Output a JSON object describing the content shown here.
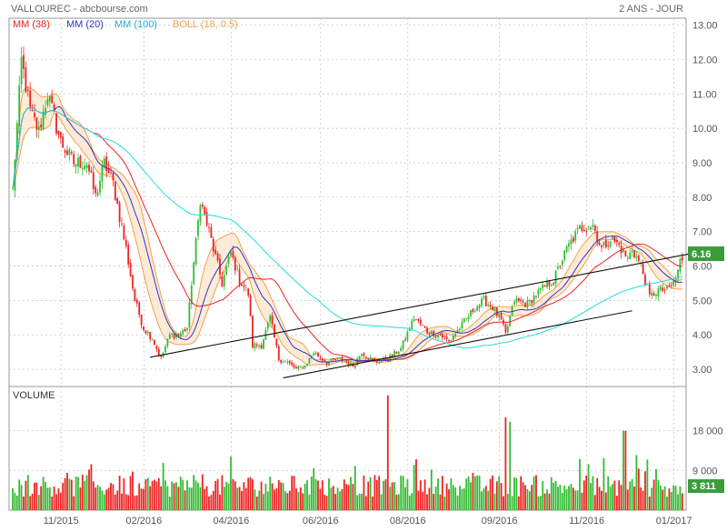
{
  "header": {
    "title": "VALLOUREC - abcbourse.com",
    "period": "2 ANS - JOUR"
  },
  "legend": [
    {
      "label": "MM (38)",
      "color": "#ee2222"
    },
    {
      "label": "MM (20)",
      "color": "#3333cc"
    },
    {
      "label": "MM (100)",
      "color": "#22dddd"
    },
    {
      "label": "BOLL (18, 0.5)",
      "color": "#f0a050"
    }
  ],
  "last_price": {
    "label": "6.16",
    "value": 6.16
  },
  "volume": {
    "title": "VOLUME",
    "last_label": "3 811",
    "last_value": 3811
  },
  "colors": {
    "up": "#33bb33",
    "down": "#ee2222",
    "grid": "#c0c0c0",
    "frame": "#999999",
    "tag": "#3a9d3a"
  },
  "chart_data": [
    {
      "type": "candlestick",
      "title": "VALLOUREC",
      "ylim": [
        2.5,
        13.2
      ],
      "y_ticks": [
        "3.00",
        "4.00",
        "5.00",
        "6.00",
        "7.00",
        "8.00",
        "9.00",
        "10.00",
        "11.00",
        "12.00",
        "13.00"
      ],
      "x_ticks": [
        "11/2015",
        "02/2016",
        "04/2016",
        "06/2016",
        "08/2016",
        "09/2016",
        "11/2016",
        "01/2017"
      ],
      "close_anchors": [
        [
          0,
          8.2
        ],
        [
          4,
          12.0
        ],
        [
          8,
          10.5
        ],
        [
          12,
          9.9
        ],
        [
          16,
          11.0
        ],
        [
          22,
          9.6
        ],
        [
          28,
          9.0
        ],
        [
          34,
          9.0
        ],
        [
          38,
          8.0
        ],
        [
          42,
          9.0
        ],
        [
          46,
          8.4
        ],
        [
          52,
          6.5
        ],
        [
          56,
          5.0
        ],
        [
          60,
          4.2
        ],
        [
          64,
          3.9
        ],
        [
          68,
          3.3
        ],
        [
          72,
          4.0
        ],
        [
          76,
          4.0
        ],
        [
          80,
          4.2
        ],
        [
          82,
          5.5
        ],
        [
          86,
          7.9
        ],
        [
          90,
          7.0
        ],
        [
          92,
          6.5
        ],
        [
          96,
          5.5
        ],
        [
          100,
          6.4
        ],
        [
          104,
          5.6
        ],
        [
          108,
          5.2
        ],
        [
          110,
          3.7
        ],
        [
          114,
          3.7
        ],
        [
          118,
          4.5
        ],
        [
          122,
          3.3
        ],
        [
          126,
          3.2
        ],
        [
          130,
          3.0
        ],
        [
          134,
          3.1
        ],
        [
          138,
          3.5
        ],
        [
          144,
          3.2
        ],
        [
          150,
          3.3
        ],
        [
          156,
          3.1
        ],
        [
          160,
          3.5
        ],
        [
          166,
          3.2
        ],
        [
          172,
          3.3
        ],
        [
          178,
          3.6
        ],
        [
          184,
          4.5
        ],
        [
          190,
          4.1
        ],
        [
          196,
          4.0
        ],
        [
          200,
          3.8
        ],
        [
          206,
          4.3
        ],
        [
          212,
          4.8
        ],
        [
          216,
          5.0
        ],
        [
          220,
          4.8
        ],
        [
          224,
          4.4
        ],
        [
          226,
          4.0
        ],
        [
          230,
          5.0
        ],
        [
          236,
          4.9
        ],
        [
          242,
          5.3
        ],
        [
          248,
          5.6
        ],
        [
          254,
          6.5
        ],
        [
          260,
          7.1
        ],
        [
          266,
          7.2
        ],
        [
          270,
          6.5
        ],
        [
          274,
          6.8
        ],
        [
          278,
          6.6
        ],
        [
          282,
          6.2
        ],
        [
          284,
          6.5
        ],
        [
          288,
          6.0
        ],
        [
          290,
          5.6
        ],
        [
          292,
          5.1
        ],
        [
          296,
          5.3
        ],
        [
          300,
          5.3
        ],
        [
          304,
          5.6
        ],
        [
          306,
          6.16
        ]
      ],
      "trend_lines": [
        {
          "name": "upper channel",
          "from": [
            63,
            3.35
          ],
          "to": [
            310,
            6.35
          ]
        },
        {
          "name": "lower channel",
          "from": [
            124,
            2.75
          ],
          "to": [
            284,
            4.7
          ]
        }
      ]
    },
    {
      "type": "bar",
      "title": "VOLUME",
      "ylim": [
        0,
        28000
      ],
      "y_ticks": [
        "9 000",
        "18 000"
      ],
      "spikes": [
        [
          172,
          26000
        ],
        [
          185,
          11500
        ],
        [
          226,
          21000
        ],
        [
          228,
          20000
        ],
        [
          280,
          18000
        ],
        [
          281,
          18000
        ],
        [
          286,
          12500
        ]
      ]
    }
  ]
}
